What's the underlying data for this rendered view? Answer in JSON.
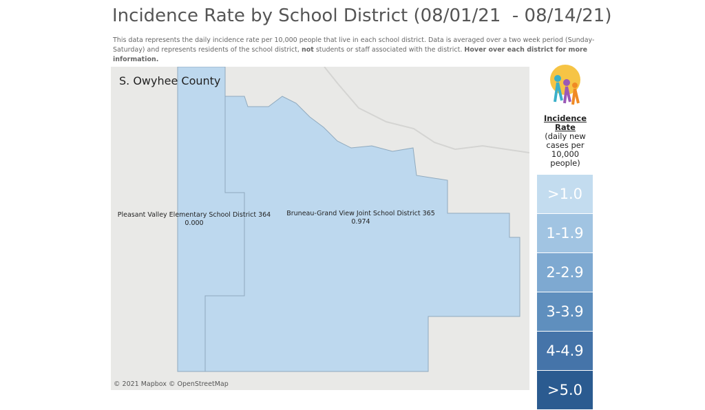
{
  "header": {
    "title": "Incidence Rate by School District (08/01/21  - 08/14/21)",
    "description": {
      "part1": "This data represents the daily incidence rate per 10,000 people that live in each school district. Data is averaged over a two week period (Sunday-Saturday) and represents residents of the school district,",
      "bold1": "not",
      "part2": "students or staff associated with the district.",
      "bold2": "Hover over each district for more information."
    }
  },
  "map": {
    "region": "S. Owyhee County",
    "districts": [
      {
        "name": "Pleasant Valley Elementary School District 364",
        "value": "0.000"
      },
      {
        "name": "Bruneau-Grand View Joint School District 365",
        "value": "0.974"
      }
    ],
    "attribution": "© 2021 Mapbox © OpenStreetMap"
  },
  "legend": {
    "title": "Incidence Rate",
    "subtitle": [
      "(daily new",
      "cases per",
      "10,000 people)"
    ],
    "items": [
      {
        "label": ">1.0",
        "color": "#c3dcef"
      },
      {
        "label": "1-1.9",
        "color": "#a1c4e2"
      },
      {
        "label": "2-2.9",
        "color": "#7ea9d1"
      },
      {
        "label": "3-3.9",
        "color": "#5f8fbe"
      },
      {
        "label": "4-4.9",
        "color": "#4574a9"
      },
      {
        "label": ">5.0",
        "color": "#2b5b90"
      }
    ]
  }
}
